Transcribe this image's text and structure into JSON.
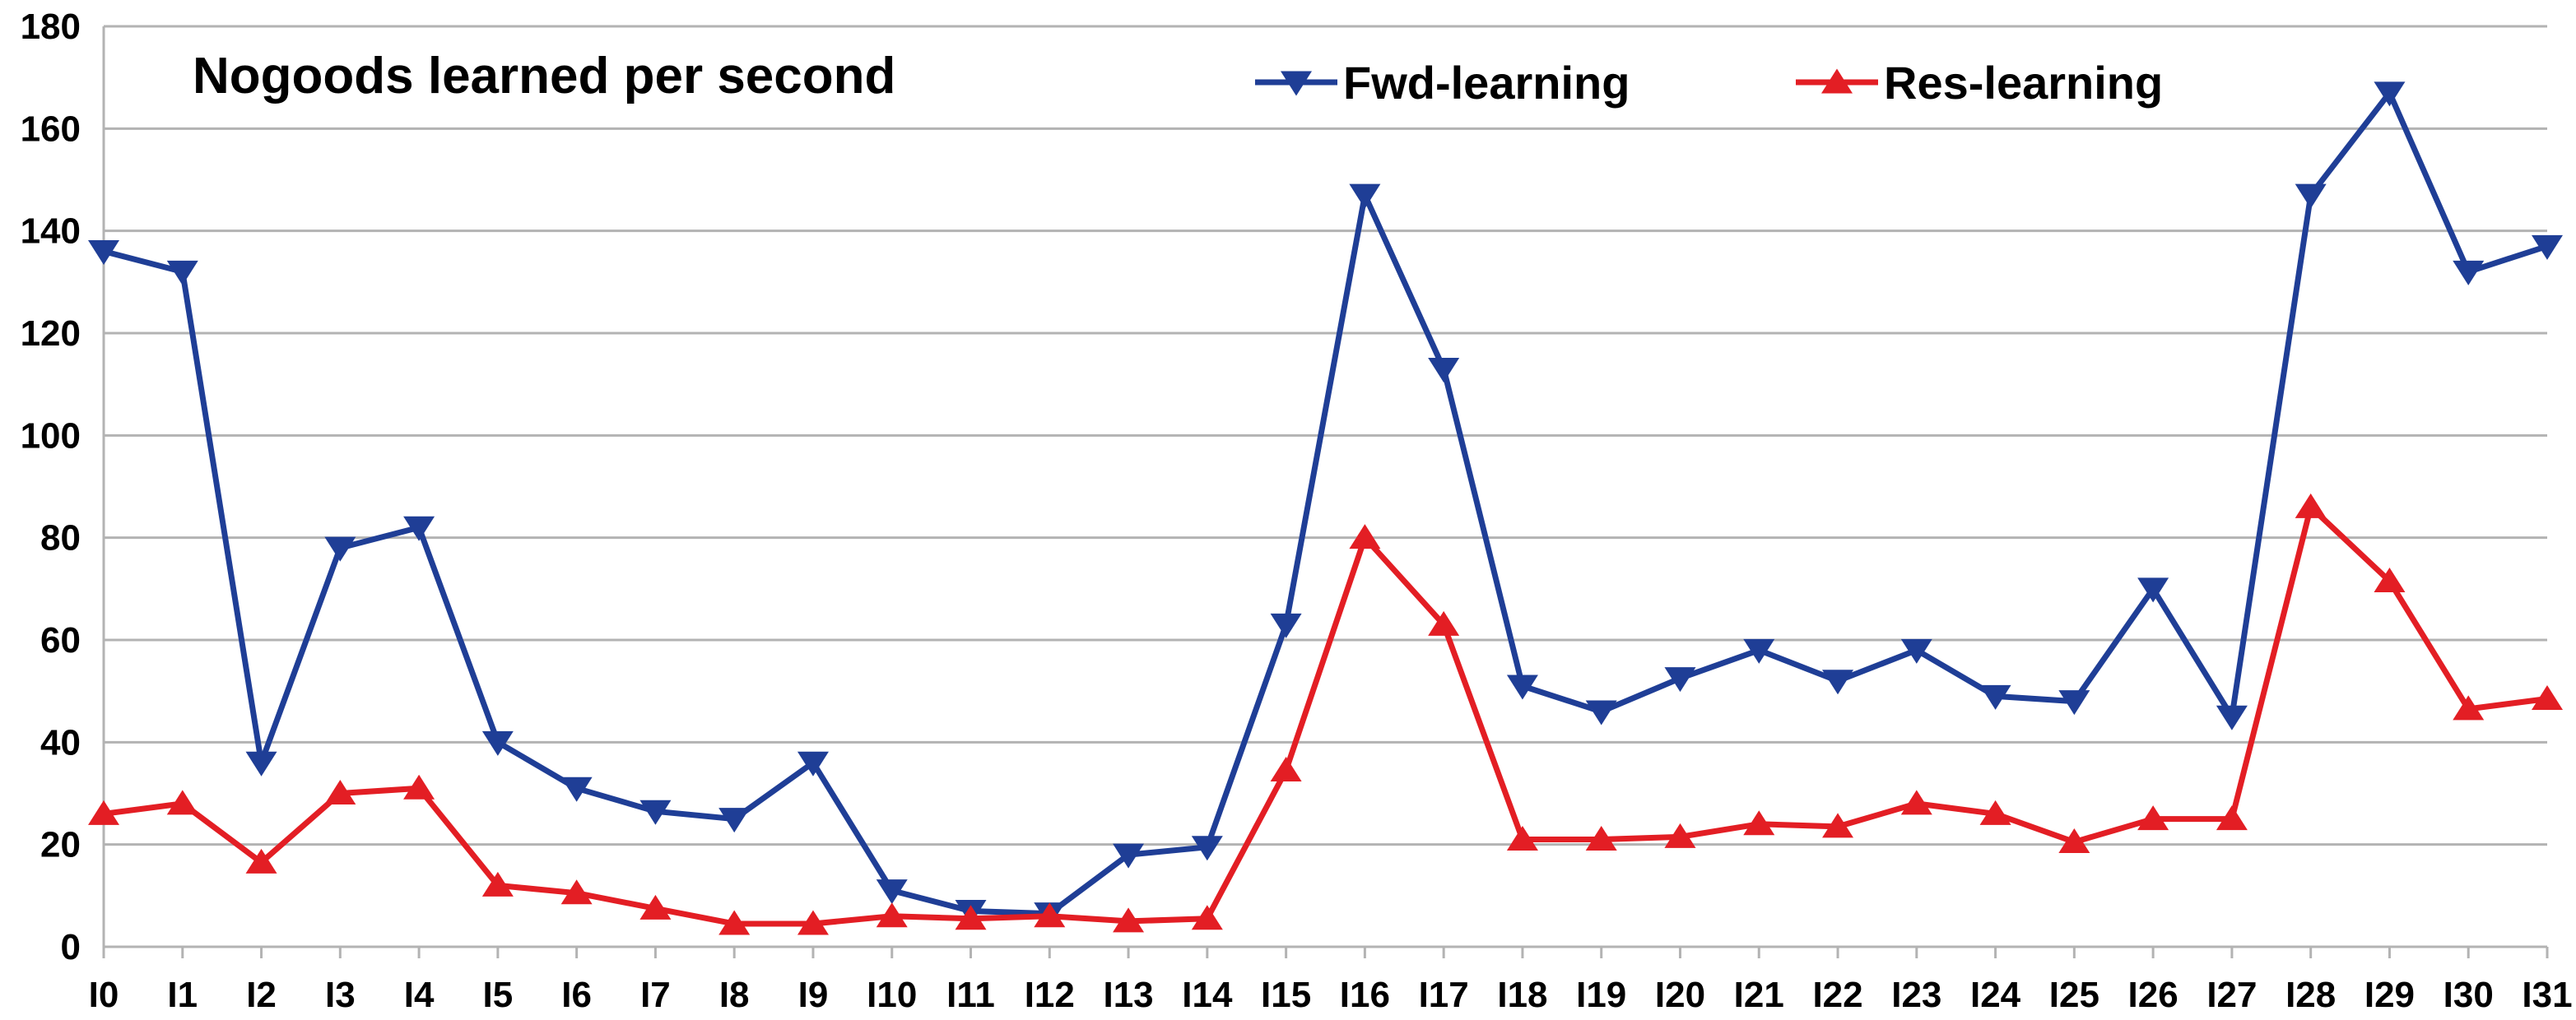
{
  "chart_data": {
    "type": "line",
    "title": "Nogoods learned per second",
    "xlabel": "",
    "ylabel": "",
    "ylim": [
      0,
      180
    ],
    "yticks": [
      0,
      20,
      40,
      60,
      80,
      100,
      120,
      140,
      160,
      180
    ],
    "grid": true,
    "legend_position": "top-right",
    "categories": [
      "I0",
      "I1",
      "I2",
      "I3",
      "I4",
      "I5",
      "I6",
      "I7",
      "I8",
      "I9",
      "I10",
      "I11",
      "I12",
      "I13",
      "I14",
      "I15",
      "I16",
      "I17",
      "I18",
      "I19",
      "I20",
      "I21",
      "I22",
      "I23",
      "I24",
      "I25",
      "I26",
      "I27",
      "I28",
      "I29",
      "I30",
      "I31"
    ],
    "series": [
      {
        "name": "Fwd-learning",
        "color": "#1f3e96",
        "marker": "triangle-down",
        "values": [
          136,
          132,
          36,
          78,
          82,
          40,
          31,
          26.5,
          25,
          36,
          11,
          7,
          6.5,
          18,
          19.5,
          63,
          147,
          113,
          51,
          46,
          52.5,
          58,
          52,
          58,
          49,
          48,
          70,
          45,
          147,
          167,
          132,
          137
        ]
      },
      {
        "name": "Res-learning",
        "color": "#e31e24",
        "marker": "triangle-up",
        "values": [
          26,
          28,
          16.5,
          30,
          31,
          12,
          10.5,
          7.5,
          4.5,
          4.5,
          6,
          5.5,
          6,
          5,
          5.5,
          34.5,
          80,
          63,
          21,
          21,
          21.5,
          24,
          23.5,
          28,
          26,
          20.5,
          25,
          25,
          86,
          71.5,
          46.5,
          48.5
        ]
      }
    ]
  }
}
